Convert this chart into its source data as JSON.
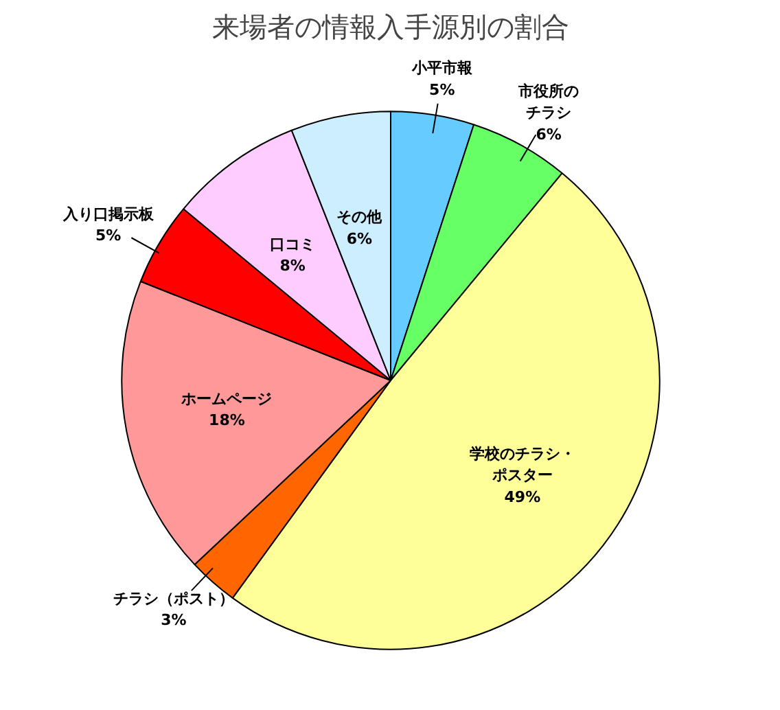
{
  "chart_data": {
    "type": "pie",
    "title": "来場者の情報入手源別の割合",
    "categories": [
      "小平市報",
      "市役所のチラシ",
      "学校のチラシ・ポスター",
      "チラシ（ポスト）",
      "ホームページ",
      "入り口掲示板",
      "口コミ",
      "その他"
    ],
    "values": [
      5,
      6,
      49,
      3,
      18,
      5,
      8,
      6
    ],
    "value_labels": [
      "5%",
      "6%",
      "49%",
      "3%",
      "18%",
      "5%",
      "8%",
      "6%"
    ],
    "colors": [
      "#66ccff",
      "#66ff66",
      "#ffff99",
      "#ff6600",
      "#ff9999",
      "#ff0000",
      "#ffccff",
      "#cceeff"
    ]
  }
}
